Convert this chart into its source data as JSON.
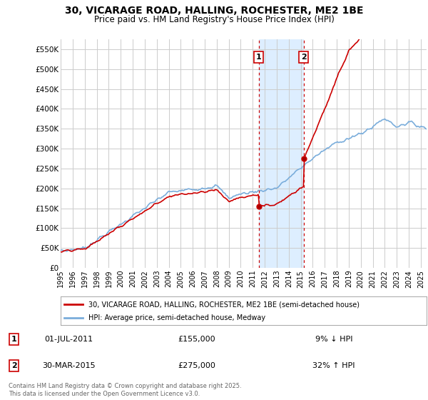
{
  "title": "30, VICARAGE ROAD, HALLING, ROCHESTER, ME2 1BE",
  "subtitle": "Price paid vs. HM Land Registry's House Price Index (HPI)",
  "title_fontsize": 10,
  "subtitle_fontsize": 8.5,
  "ylabel_ticks": [
    "£0",
    "£50K",
    "£100K",
    "£150K",
    "£200K",
    "£250K",
    "£300K",
    "£350K",
    "£400K",
    "£450K",
    "£500K",
    "£550K"
  ],
  "ytick_values": [
    0,
    50000,
    100000,
    150000,
    200000,
    250000,
    300000,
    350000,
    400000,
    450000,
    500000,
    550000
  ],
  "ylim": [
    0,
    575000
  ],
  "xlim_start": 1995,
  "xlim_end": 2025.5,
  "transaction1": {
    "date": 2011.5,
    "price": 155000,
    "label": "1",
    "pct": "9% ↓ HPI",
    "date_str": "01-JUL-2011"
  },
  "transaction2": {
    "date": 2015.25,
    "price": 275000,
    "label": "2",
    "pct": "32% ↑ HPI",
    "date_str": "30-MAR-2015"
  },
  "legend_line1": "30, VICARAGE ROAD, HALLING, ROCHESTER, ME2 1BE (semi-detached house)",
  "legend_line2": "HPI: Average price, semi-detached house, Medway",
  "footer1": "Contains HM Land Registry data © Crown copyright and database right 2025.",
  "footer2": "This data is licensed under the Open Government Licence v3.0.",
  "price_line_color": "#cc0000",
  "hpi_line_color": "#7aaddb",
  "highlight_fill": "#ddeeff",
  "vline_color": "#cc0000",
  "background_color": "#ffffff",
  "grid_color": "#cccccc"
}
